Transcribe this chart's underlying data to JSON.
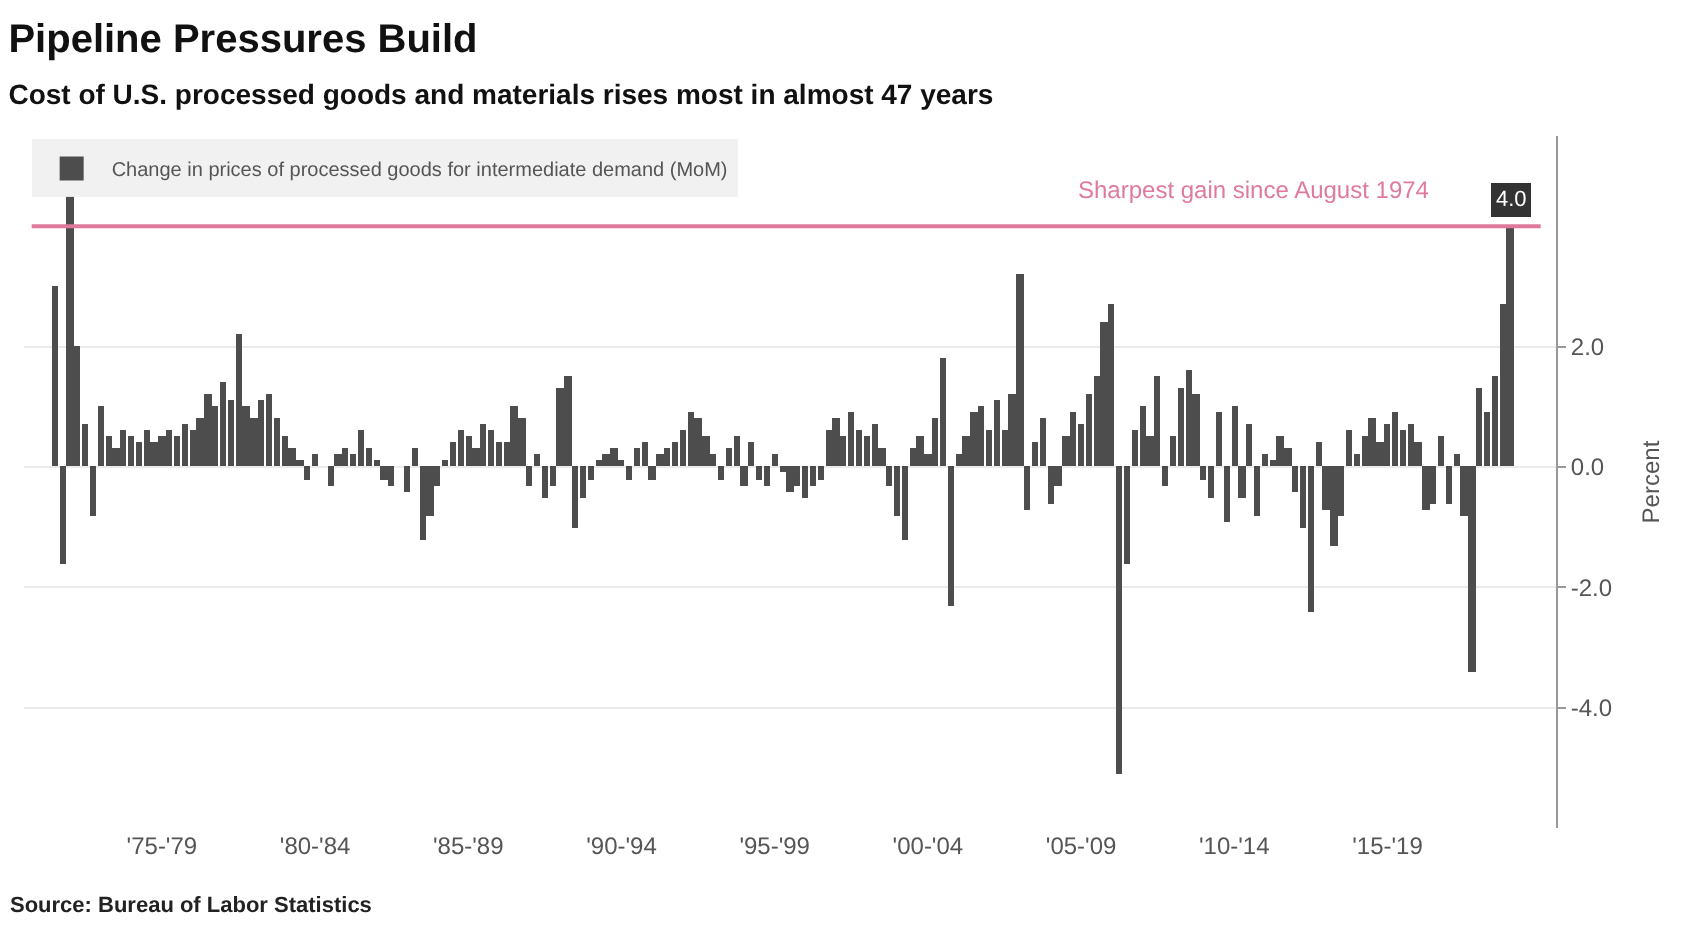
{
  "chart_data": {
    "type": "bar",
    "title": "Pipeline Pressures Build",
    "subtitle": "Cost of U.S. processed goods and materials rises most in almost 47 years",
    "ylabel": "Percent",
    "annotations": [
      "Source: Bureau of Labor Statistics"
    ],
    "categories": [
      null,
      null,
      null,
      null,
      null,
      null,
      null,
      null,
      null,
      null,
      null,
      null,
      null,
      null,
      "'75-'79",
      null,
      null,
      null,
      null,
      null,
      null,
      null,
      null,
      null,
      null,
      null,
      null,
      null,
      null,
      null,
      null,
      null,
      null,
      null,
      "'80-'84",
      null,
      null,
      null,
      null,
      null,
      null,
      null,
      null,
      null,
      null,
      null,
      null,
      null,
      null,
      null,
      null,
      null,
      null,
      null,
      "'85-'89",
      null,
      null,
      null,
      null,
      null,
      null,
      null,
      null,
      null,
      null,
      null,
      null,
      null,
      null,
      null,
      null,
      null,
      null,
      null,
      "'90-'94",
      null,
      null,
      null,
      null,
      null,
      null,
      null,
      null,
      null,
      null,
      null,
      null,
      null,
      null,
      null,
      null,
      null,
      null,
      null,
      "'95-'99",
      null,
      null,
      null,
      null,
      null,
      null,
      null,
      null,
      null,
      null,
      null,
      null,
      null,
      null,
      null,
      null,
      null,
      null,
      null,
      "'00-'04",
      null,
      null,
      null,
      null,
      null,
      null,
      null,
      null,
      null,
      null,
      null,
      null,
      null,
      null,
      null,
      null,
      null,
      null,
      null,
      "'05-'09",
      null,
      null,
      null,
      null,
      null,
      null,
      null,
      null,
      null,
      null,
      null,
      null,
      null,
      null,
      null,
      null,
      null,
      null,
      null,
      "'10-'14",
      null,
      null,
      null,
      null,
      null,
      null,
      null,
      null,
      null,
      null,
      null,
      null,
      null,
      null,
      null,
      null,
      null,
      null,
      null,
      "'15-'19",
      null,
      null,
      null,
      null,
      null,
      null,
      null,
      null,
      null,
      null,
      null,
      null,
      null,
      null,
      null,
      null
    ],
    "ylim": [
      -6,
      5.5
    ],
    "yticks": [
      {
        "value": -4,
        "label": "-4.0"
      },
      {
        "value": -2,
        "label": "-2.0"
      },
      {
        "value": 0,
        "label": "0.0"
      },
      {
        "value": 2,
        "label": "2.0"
      }
    ],
    "grid": "y",
    "legend": "top left",
    "ref_lines": [
      {
        "axis": "y",
        "value": 4.0,
        "label": "Sharpest gain since August 1974",
        "color": "#e07a9c"
      }
    ],
    "series": [
      {
        "name": "Change in prices of processed goods for intermediate demand (MoM)",
        "color": "#4d4d4d",
        "values": [
          3.0,
          -1.6,
          4.5,
          2.0,
          0.7,
          -0.8,
          1.0,
          0.5,
          0.3,
          0.6,
          0.5,
          0.4,
          0.6,
          0.4,
          0.5,
          0.6,
          0.5,
          0.7,
          0.6,
          0.8,
          1.2,
          1.0,
          1.4,
          1.1,
          2.2,
          1.0,
          0.8,
          1.1,
          1.2,
          0.8,
          0.5,
          0.3,
          0.1,
          -0.2,
          0.2,
          0.0,
          -0.3,
          0.2,
          0.3,
          0.2,
          0.6,
          0.3,
          0.1,
          -0.2,
          -0.3,
          0.0,
          -0.4,
          0.3,
          -1.2,
          -0.8,
          -0.3,
          0.1,
          0.4,
          0.6,
          0.5,
          0.3,
          0.7,
          0.6,
          0.4,
          0.4,
          1.0,
          0.8,
          -0.3,
          0.2,
          -0.5,
          -0.3,
          1.3,
          1.5,
          -1.0,
          -0.5,
          -0.2,
          0.1,
          0.2,
          0.3,
          0.1,
          -0.2,
          0.3,
          0.4,
          -0.2,
          0.2,
          0.3,
          0.4,
          0.6,
          0.9,
          0.8,
          0.5,
          0.2,
          -0.2,
          0.3,
          0.5,
          -0.3,
          0.4,
          -0.2,
          -0.3,
          0.2,
          -0.1,
          -0.4,
          -0.3,
          -0.5,
          -0.3,
          -0.2,
          0.6,
          0.8,
          0.5,
          0.9,
          0.6,
          0.5,
          0.7,
          0.3,
          -0.3,
          -0.8,
          -1.2,
          0.3,
          0.5,
          0.2,
          0.8,
          1.8,
          -2.3,
          0.2,
          0.5,
          0.9,
          1.0,
          0.6,
          1.1,
          0.6,
          1.2,
          3.2,
          -0.7,
          0.4,
          0.8,
          -0.6,
          -0.3,
          0.5,
          0.9,
          0.7,
          1.2,
          1.5,
          2.4,
          2.7,
          -5.1,
          -1.6,
          0.6,
          1.0,
          0.5,
          1.5,
          -0.3,
          0.5,
          1.3,
          1.6,
          1.2,
          -0.2,
          -0.5,
          0.9,
          -0.9,
          1.0,
          -0.5,
          0.7,
          -0.8,
          0.2,
          0.1,
          0.5,
          0.3,
          -0.4,
          -1.0,
          -2.4,
          0.4,
          -0.7,
          -1.3,
          -0.8,
          0.6,
          0.2,
          0.5,
          0.8,
          0.4,
          0.7,
          0.9,
          0.6,
          0.7,
          0.4,
          -0.7,
          -0.6,
          0.5,
          -0.6,
          0.2,
          -0.8,
          -3.4,
          1.3,
          0.9,
          1.5,
          2.7,
          4.0
        ],
        "value_labels": [
          null,
          null,
          null,
          null,
          null,
          null,
          null,
          null,
          null,
          null,
          null,
          null,
          null,
          null,
          null,
          null,
          null,
          null,
          null,
          null,
          null,
          null,
          null,
          null,
          null,
          null,
          null,
          null,
          null,
          null,
          null,
          null,
          null,
          null,
          null,
          null,
          null,
          null,
          null,
          null,
          null,
          null,
          null,
          null,
          null,
          null,
          null,
          null,
          null,
          null,
          null,
          null,
          null,
          null,
          null,
          null,
          null,
          null,
          null,
          null,
          null,
          null,
          null,
          null,
          null,
          null,
          null,
          null,
          null,
          null,
          null,
          null,
          null,
          null,
          null,
          null,
          null,
          null,
          null,
          null,
          null,
          null,
          null,
          null,
          null,
          null,
          null,
          null,
          null,
          null,
          null,
          null,
          null,
          null,
          null,
          null,
          null,
          null,
          null,
          null,
          null,
          null,
          null,
          null,
          null,
          null,
          null,
          null,
          null,
          null,
          null,
          null,
          null,
          null,
          null,
          null,
          null,
          null,
          null,
          null,
          null,
          null,
          null,
          null,
          null,
          null,
          null,
          null,
          null,
          null,
          null,
          null,
          null,
          null,
          null,
          null,
          null,
          null,
          null,
          null,
          null,
          null,
          null,
          null,
          null,
          null,
          null,
          null,
          null,
          null,
          null,
          null,
          null,
          null,
          null,
          null,
          null,
          null,
          null,
          null,
          null,
          null,
          null,
          null,
          null,
          null,
          null,
          null,
          null,
          null,
          null,
          null,
          null,
          null,
          null,
          null,
          null,
          null,
          null,
          null,
          null,
          null,
          null,
          null,
          null,
          null,
          null,
          null,
          null,
          null,
          "4.0"
        ]
      }
    ]
  }
}
